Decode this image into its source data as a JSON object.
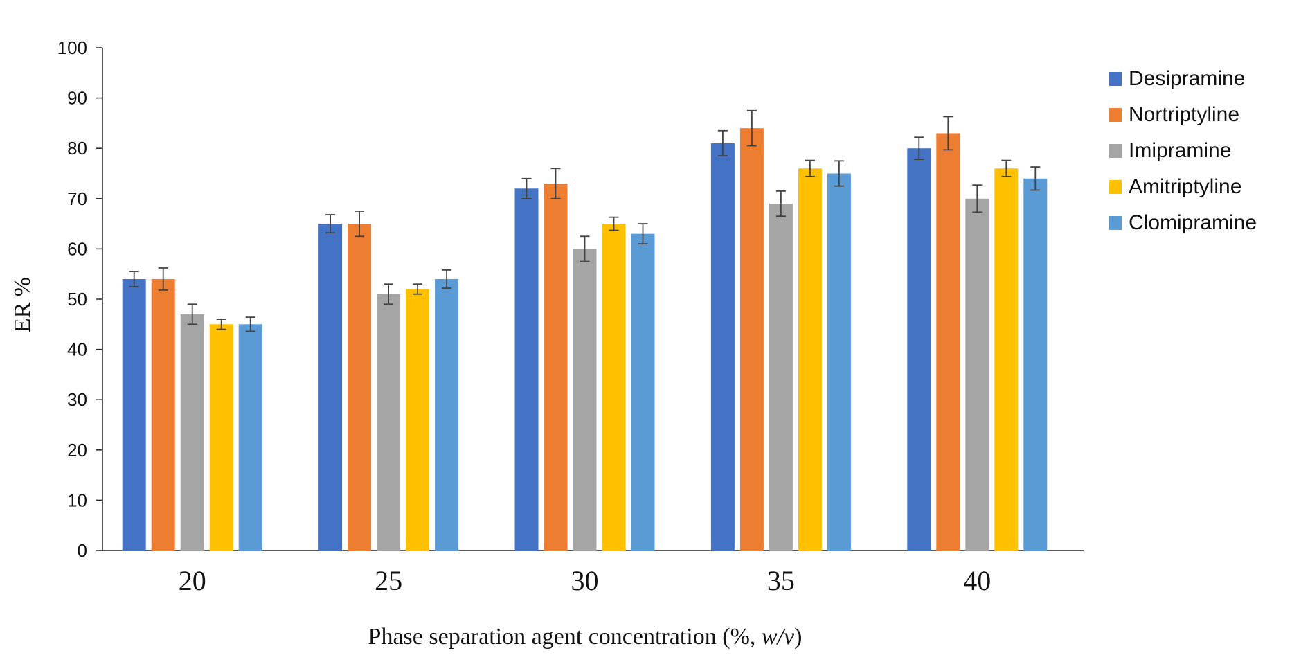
{
  "chart_data": {
    "type": "bar",
    "ylabel": "ER %",
    "xlabel_prefix": "Phase separation agent concentration (%, ",
    "xlabel_italic": "w/v",
    "xlabel_suffix": ")",
    "categories": [
      "20",
      "25",
      "30",
      "35",
      "40"
    ],
    "ylim": [
      0,
      100
    ],
    "yticks": [
      "0",
      "10",
      "20",
      "30",
      "40",
      "50",
      "60",
      "70",
      "80",
      "90",
      "100"
    ],
    "grid": false,
    "legend_position": "right",
    "series": [
      {
        "name": "Desipramine",
        "color": "#4472C4",
        "values": [
          54,
          65,
          72,
          81,
          80
        ],
        "errors": [
          1.5,
          1.8,
          2.0,
          2.5,
          2.2
        ]
      },
      {
        "name": "Nortriptyline",
        "color": "#ED7D31",
        "values": [
          54,
          65,
          73,
          84,
          83
        ],
        "errors": [
          2.2,
          2.5,
          3.0,
          3.5,
          3.3
        ]
      },
      {
        "name": "Imipramine",
        "color": "#A5A5A5",
        "values": [
          47,
          51,
          60,
          69,
          70
        ],
        "errors": [
          2.0,
          2.0,
          2.5,
          2.5,
          2.7
        ]
      },
      {
        "name": "Amitriptyline",
        "color": "#FFC000",
        "values": [
          45,
          52,
          65,
          76,
          76
        ],
        "errors": [
          1.0,
          1.0,
          1.3,
          1.6,
          1.6
        ]
      },
      {
        "name": "Clomipramine",
        "color": "#5B9BD5",
        "values": [
          45,
          54,
          63,
          75,
          74
        ],
        "errors": [
          1.4,
          1.8,
          2.0,
          2.5,
          2.3
        ]
      }
    ]
  }
}
